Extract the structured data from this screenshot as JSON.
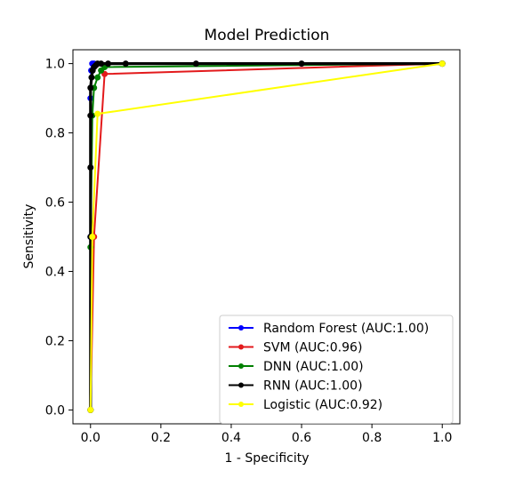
{
  "chart_data": {
    "type": "line",
    "title": "Model Prediction",
    "xlabel": "1 - Specificity",
    "ylabel": "Sensitivity",
    "xlim": [
      -0.05,
      1.05
    ],
    "ylim": [
      -0.04,
      1.04
    ],
    "xticks": [
      0.0,
      0.2,
      0.4,
      0.6,
      0.8,
      1.0
    ],
    "xtick_labels": [
      "0.0",
      "0.2",
      "0.4",
      "0.6",
      "0.8",
      "1.0"
    ],
    "yticks": [
      0.0,
      0.2,
      0.4,
      0.6,
      0.8,
      1.0
    ],
    "ytick_labels": [
      "0.0",
      "0.2",
      "0.4",
      "0.6",
      "0.8",
      "1.0"
    ],
    "grid": false,
    "legend_position": "lower-right",
    "series": [
      {
        "name": "Random Forest (AUC:1.00)",
        "color": "#0000ff",
        "x": [
          0.0,
          0.0,
          0.0,
          0.002,
          0.005,
          0.01,
          1.0
        ],
        "y": [
          0.0,
          0.5,
          0.9,
          0.98,
          1.0,
          1.0,
          1.0
        ]
      },
      {
        "name": "SVM (AUC:0.96)",
        "color": "#e31a1c",
        "x": [
          0.0,
          0.01,
          0.04,
          1.0
        ],
        "y": [
          0.0,
          0.5,
          0.97,
          1.0
        ]
      },
      {
        "name": "DNN (AUC:1.00)",
        "color": "#008000",
        "x": [
          0.0,
          0.0,
          0.005,
          0.01,
          0.02,
          0.03,
          0.04,
          1.0
        ],
        "y": [
          0.0,
          0.47,
          0.85,
          0.93,
          0.96,
          0.98,
          0.99,
          1.0
        ]
      },
      {
        "name": "RNN (AUC:1.00)",
        "color": "#000000",
        "x": [
          0.0,
          0.0,
          0.0,
          0.0,
          0.0,
          0.003,
          0.006,
          0.01,
          0.015,
          0.02,
          0.03,
          0.05,
          0.1,
          0.3,
          0.6,
          1.0
        ],
        "y": [
          0.0,
          0.5,
          0.7,
          0.85,
          0.93,
          0.96,
          0.98,
          0.99,
          0.995,
          1.0,
          1.0,
          1.0,
          1.0,
          1.0,
          1.0,
          1.0
        ]
      },
      {
        "name": "Logistic (AUC:0.92)",
        "color": "#ffff00",
        "x": [
          0.0,
          0.005,
          0.02,
          1.0
        ],
        "y": [
          0.0,
          0.5,
          0.855,
          1.0
        ]
      }
    ]
  }
}
